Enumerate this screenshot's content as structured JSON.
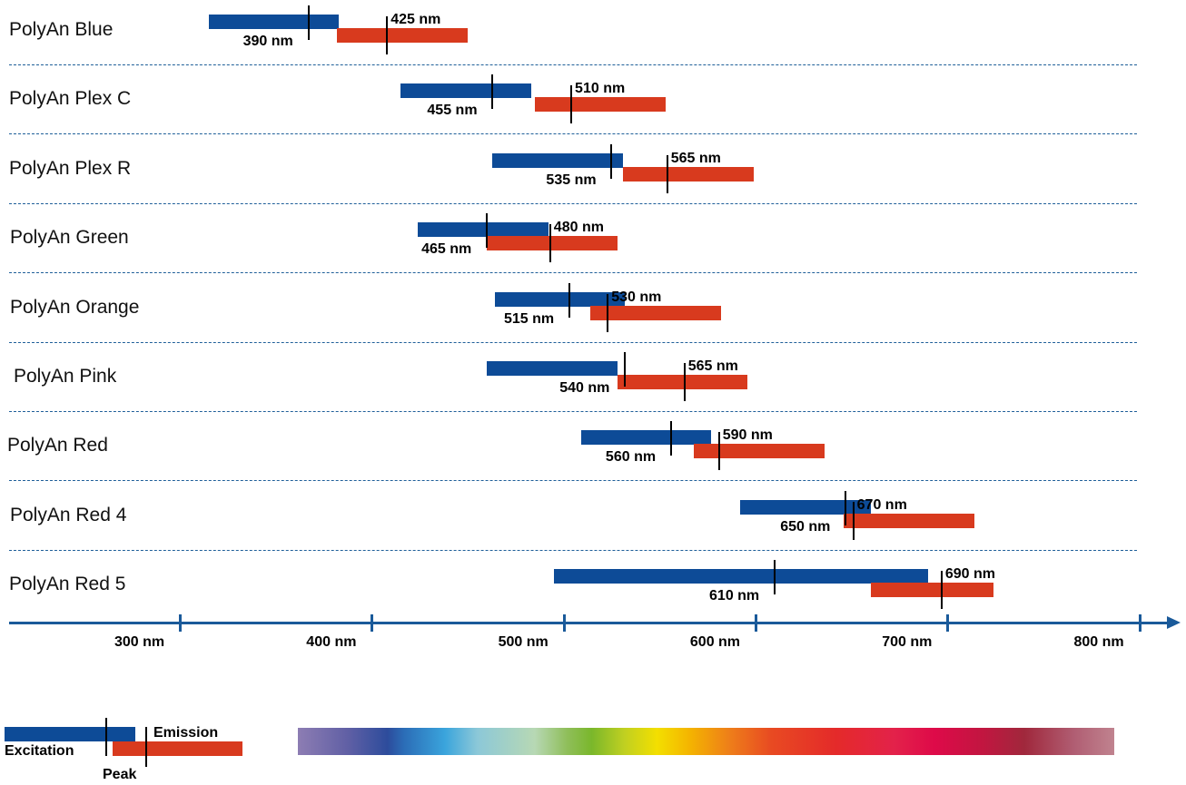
{
  "axis": {
    "ticks": [
      {
        "value": 300,
        "label": "300 nm"
      },
      {
        "value": 400,
        "label": "400 nm"
      },
      {
        "value": 500,
        "label": "500 nm"
      },
      {
        "value": 600,
        "label": "600 nm"
      },
      {
        "value": 700,
        "label": "700 nm"
      },
      {
        "value": 800,
        "label": "800 nm"
      }
    ]
  },
  "dyes": [
    {
      "name": "PolyAn Blue",
      "excitation": {
        "start": 315,
        "end": 383,
        "peak": 367,
        "label": "390 nm"
      },
      "emission": {
        "start": 382,
        "end": 450,
        "peak": 408,
        "label": "425 nm"
      }
    },
    {
      "name": "PolyAn Plex C",
      "excitation": {
        "start": 415,
        "end": 483,
        "peak": 463,
        "label": "455 nm"
      },
      "emission": {
        "start": 485,
        "end": 553,
        "peak": 504,
        "label": "510 nm"
      }
    },
    {
      "name": "PolyAn Plex R",
      "excitation": {
        "start": 463,
        "end": 531,
        "peak": 525,
        "label": "535 nm"
      },
      "emission": {
        "start": 531,
        "end": 599,
        "peak": 554,
        "label": "565 nm"
      }
    },
    {
      "name": "PolyAn Green",
      "excitation": {
        "start": 424,
        "end": 492,
        "peak": 460,
        "label": "465 nm"
      },
      "emission": {
        "start": 460,
        "end": 528,
        "peak": 493,
        "label": "480 nm"
      }
    },
    {
      "name": "PolyAn Orange",
      "excitation": {
        "start": 464,
        "end": 532,
        "peak": 503,
        "label": "515 nm"
      },
      "emission": {
        "start": 514,
        "end": 582,
        "peak": 523,
        "label": "530 nm"
      }
    },
    {
      "name": "PolyAn Pink",
      "excitation": {
        "start": 460,
        "end": 528,
        "peak": 532,
        "label": "540 nm"
      },
      "emission": {
        "start": 528,
        "end": 596,
        "peak": 563,
        "label": "565 nm"
      }
    },
    {
      "name": "PolyAn Red",
      "excitation": {
        "start": 509,
        "end": 577,
        "peak": 556,
        "label": "560 nm"
      },
      "emission": {
        "start": 568,
        "end": 636,
        "peak": 581,
        "label": "590 nm"
      }
    },
    {
      "name": "PolyAn Red 4",
      "excitation": {
        "start": 592,
        "end": 660,
        "peak": 647,
        "label": "650 nm"
      },
      "emission": {
        "start": 646,
        "end": 714,
        "peak": 651,
        "label": "670 nm"
      }
    },
    {
      "name": "PolyAn Red 5",
      "excitation": {
        "start": 495,
        "end": 690,
        "peak": 610,
        "label": "610 nm"
      },
      "emission": {
        "start": 660,
        "end": 724,
        "peak": 697,
        "label": "690 nm"
      }
    }
  ],
  "legend": {
    "excitation_label": "Excitation",
    "emission_label": "Emission",
    "peak_label": "Peak"
  },
  "colors": {
    "excitation": "#0d4b97",
    "emission": "#d83a1e",
    "axis": "#1a5a9a",
    "separator": "#1f5f99"
  }
}
